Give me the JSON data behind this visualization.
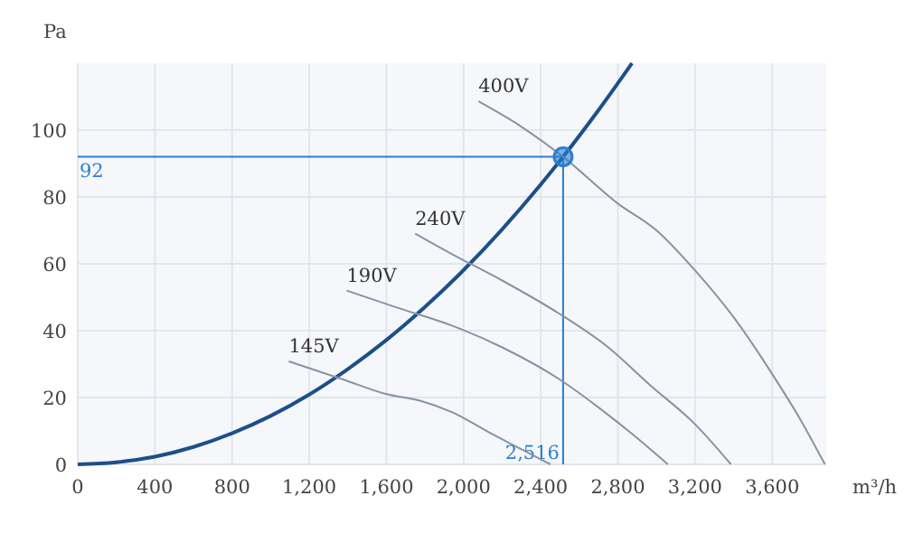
{
  "chart_data": {
    "type": "line",
    "xlabel": "m³/h",
    "ylabel": "Pa",
    "xlim": [
      0,
      3880
    ],
    "ylim": [
      0,
      120
    ],
    "xticks": [
      0,
      400,
      800,
      {
        "value": 1200,
        "label": "1,200"
      },
      {
        "value": 1600,
        "label": "1,600"
      },
      {
        "value": 2000,
        "label": "2,000"
      },
      {
        "value": 2400,
        "label": "2,400"
      },
      {
        "value": 2800,
        "label": "2,800"
      },
      {
        "value": 3200,
        "label": "3,200"
      },
      {
        "value": 3600,
        "label": "3,600"
      }
    ],
    "yticks": [
      0,
      20,
      40,
      60,
      80,
      100
    ],
    "grid": true,
    "series": [
      {
        "color": "#1d4f8a",
        "x": [
          0,
          200,
          400,
          600,
          800,
          1000,
          1200,
          1400,
          1600,
          1800,
          2000,
          2200,
          2400,
          2516,
          2700,
          2873
        ],
        "values": [
          0,
          0.6,
          2.3,
          5.2,
          9.3,
          14.5,
          20.9,
          28.5,
          37.2,
          47.1,
          58.1,
          70.3,
          83.7,
          92,
          106,
          120
        ]
      },
      {
        "name": "400V",
        "color": "#8793a3",
        "x": [
          2077,
          2300,
          2516,
          2800,
          3000,
          3200,
          3400,
          3600,
          3750,
          3873
        ],
        "values": [
          108.6,
          101,
          92,
          78,
          70,
          58,
          44,
          27,
          13,
          0
        ]
      },
      {
        "name": "240V",
        "color": "#8793a3",
        "x": [
          1749,
          1936,
          2200,
          2498,
          2750,
          2965,
          3200,
          3386
        ],
        "values": [
          69,
          63,
          55,
          45,
          35,
          23.8,
          12,
          0
        ]
      },
      {
        "name": "190V",
        "color": "#8793a3",
        "x": [
          1394,
          1650,
          1936,
          2200,
          2498,
          2700,
          2872,
          3059
        ],
        "values": [
          52,
          47,
          41.6,
          35,
          25.4,
          17,
          9.2,
          0
        ]
      },
      {
        "name": "145V",
        "color": "#8793a3",
        "x": [
          1094,
          1375,
          1600,
          1777,
          1936,
          2150,
          2300,
          2450
        ],
        "values": [
          30.8,
          25.4,
          21,
          19,
          15.7,
          9,
          4.5,
          0
        ]
      },
      {
        "type": "scatter",
        "marker": "circle",
        "color": "#2b7fcf",
        "x": [
          2516
        ],
        "values": [
          92
        ]
      }
    ],
    "ref_lines": [
      {
        "axis": "y",
        "value": 92,
        "label": "92",
        "color": "#2b7fcf"
      },
      {
        "axis": "x",
        "value": 2516,
        "label": "2,516",
        "color": "#2b7fcf"
      }
    ]
  }
}
